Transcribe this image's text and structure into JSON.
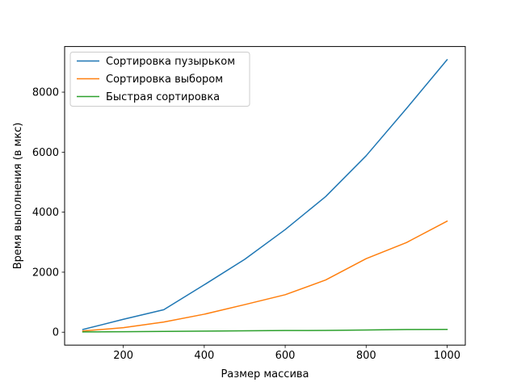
{
  "chart_data": {
    "type": "line",
    "title": "",
    "xlabel": "Размер массива",
    "ylabel": "Время выполнения (в мкс)",
    "xlim": [
      55,
      1045
    ],
    "ylim": [
      -430,
      9520
    ],
    "xticks": [
      200,
      400,
      600,
      800,
      1000
    ],
    "yticks": [
      0,
      2000,
      4000,
      6000,
      8000
    ],
    "x": [
      100,
      200,
      300,
      400,
      500,
      600,
      700,
      800,
      900,
      1000
    ],
    "series": [
      {
        "name": "Сортировка пузырьком",
        "color": "#1f77b4",
        "values": [
          90,
          430,
          750,
          1580,
          2430,
          3420,
          4520,
          5880,
          7460,
          9080
        ]
      },
      {
        "name": "Сортировка выбором",
        "color": "#ff7f0e",
        "values": [
          40,
          150,
          340,
          600,
          920,
          1250,
          1740,
          2450,
          2990,
          3700
        ]
      },
      {
        "name": "Быстрая сортировка",
        "color": "#2ca02c",
        "values": [
          10,
          15,
          25,
          35,
          45,
          55,
          60,
          75,
          90,
          95
        ]
      }
    ],
    "grid": false,
    "legend_position": "upper-left"
  }
}
